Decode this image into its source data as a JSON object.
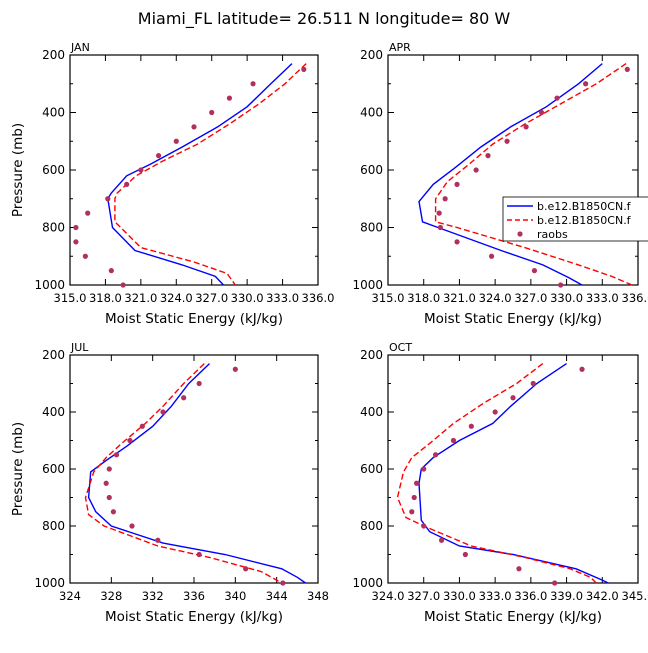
{
  "title": "Miami_FL  latitude= 26.511 N longitude= 80 W",
  "colors": {
    "model1": "#0000ff",
    "model2": "#ff0000",
    "obs": "#b03060",
    "axis": "#000000"
  },
  "legend": {
    "entries": [
      {
        "label": "b.e12.B1850CN.f",
        "style": "solid",
        "color": "#0000ff"
      },
      {
        "label": "b.e12.B1850CN.f",
        "style": "dashed",
        "color": "#ff0000"
      },
      {
        "label": "raobs",
        "style": "dots",
        "color": "#b03060"
      }
    ]
  },
  "chart_data": [
    {
      "type": "line",
      "panel": "JAN",
      "xlabel": "Moist Static Energy (kJ/kg)",
      "ylabel": "Pressure (mb)",
      "xlim": [
        315.0,
        336.0
      ],
      "ylim": [
        1000,
        200
      ],
      "xticks": [
        315.0,
        318.0,
        321.0,
        324.0,
        327.0,
        330.0,
        333.0,
        336.0
      ],
      "xtick_labels": [
        "315.0",
        "318.0",
        "321.0",
        "324.0",
        "327.0",
        "330.0",
        "333.0",
        "336.0"
      ],
      "yticks": [
        200,
        400,
        600,
        800,
        1000
      ],
      "series": [
        {
          "style": "solid",
          "color": "#0000ff",
          "points": [
            [
              333.8,
              230
            ],
            [
              332.0,
              300
            ],
            [
              330.0,
              380
            ],
            [
              327.5,
              450
            ],
            [
              324.5,
              520
            ],
            [
              321.8,
              580
            ],
            [
              319.8,
              620
            ],
            [
              318.5,
              680
            ],
            [
              318.2,
              700
            ],
            [
              318.6,
              800
            ],
            [
              320.5,
              880
            ],
            [
              324.5,
              930
            ],
            [
              327.3,
              970
            ],
            [
              328.0,
              1000
            ]
          ]
        },
        {
          "style": "dashed",
          "color": "#ff0000",
          "points": [
            [
              335.0,
              230
            ],
            [
              333.2,
              300
            ],
            [
              331.0,
              370
            ],
            [
              328.5,
              440
            ],
            [
              325.8,
              510
            ],
            [
              322.8,
              570
            ],
            [
              320.6,
              620
            ],
            [
              319.0,
              680
            ],
            [
              318.8,
              700
            ],
            [
              318.8,
              780
            ],
            [
              321.0,
              870
            ],
            [
              325.5,
              920
            ],
            [
              328.3,
              960
            ],
            [
              329.0,
              1000
            ]
          ]
        },
        {
          "style": "dots",
          "color": "#b03060",
          "points": [
            [
              334.8,
              250
            ],
            [
              330.5,
              300
            ],
            [
              328.5,
              350
            ],
            [
              327.0,
              400
            ],
            [
              325.5,
              450
            ],
            [
              324.0,
              500
            ],
            [
              322.5,
              550
            ],
            [
              321.0,
              600
            ],
            [
              319.8,
              650
            ],
            [
              318.2,
              700
            ],
            [
              316.5,
              750
            ],
            [
              315.5,
              800
            ],
            [
              315.5,
              850
            ],
            [
              316.3,
              900
            ],
            [
              318.5,
              950
            ],
            [
              319.5,
              1000
            ]
          ]
        }
      ]
    },
    {
      "type": "line",
      "panel": "APR",
      "xlabel": "Moist Static Energy (kJ/kg)",
      "ylabel": "",
      "xlim": [
        315.0,
        336.0
      ],
      "ylim": [
        1000,
        200
      ],
      "xticks": [
        315.0,
        318.0,
        321.0,
        324.0,
        327.0,
        330.0,
        333.0,
        336.0
      ],
      "xtick_labels": [
        "315.0",
        "318.0",
        "321.0",
        "324.0",
        "327.0",
        "330.0",
        "333.0",
        "336.0"
      ],
      "yticks": [
        200,
        400,
        600,
        800,
        1000
      ],
      "series": [
        {
          "style": "solid",
          "color": "#0000ff",
          "points": [
            [
              333.0,
              230
            ],
            [
              331.0,
              300
            ],
            [
              328.3,
              380
            ],
            [
              325.3,
              450
            ],
            [
              322.8,
              520
            ],
            [
              320.7,
              590
            ],
            [
              318.8,
              650
            ],
            [
              317.6,
              710
            ],
            [
              317.9,
              780
            ],
            [
              319.2,
              800
            ],
            [
              324.5,
              880
            ],
            [
              328.0,
              930
            ],
            [
              330.2,
              975
            ],
            [
              331.3,
              1000
            ]
          ]
        },
        {
          "style": "dashed",
          "color": "#ff0000",
          "points": [
            [
              335.0,
              230
            ],
            [
              332.5,
              300
            ],
            [
              329.5,
              370
            ],
            [
              326.5,
              440
            ],
            [
              323.8,
              510
            ],
            [
              321.8,
              580
            ],
            [
              320.0,
              640
            ],
            [
              319.0,
              700
            ],
            [
              319.0,
              780
            ],
            [
              320.8,
              800
            ],
            [
              326.5,
              870
            ],
            [
              331.0,
              930
            ],
            [
              333.8,
              970
            ],
            [
              335.5,
              1000
            ]
          ]
        },
        {
          "style": "dots",
          "color": "#b03060",
          "points": [
            [
              335.1,
              250
            ],
            [
              331.6,
              300
            ],
            [
              329.2,
              350
            ],
            [
              327.9,
              400
            ],
            [
              326.6,
              450
            ],
            [
              325.0,
              500
            ],
            [
              323.4,
              550
            ],
            [
              322.4,
              600
            ],
            [
              320.8,
              650
            ],
            [
              319.8,
              700
            ],
            [
              319.3,
              750
            ],
            [
              319.4,
              800
            ],
            [
              320.8,
              850
            ],
            [
              323.7,
              900
            ],
            [
              327.3,
              950
            ],
            [
              329.5,
              1000
            ]
          ]
        }
      ]
    },
    {
      "type": "line",
      "panel": "JUL",
      "xlabel": "Moist Static Energy (kJ/kg)",
      "ylabel": "Pressure (mb)",
      "xlim": [
        324,
        348
      ],
      "ylim": [
        1000,
        200
      ],
      "xticks": [
        324,
        328,
        332,
        336,
        340,
        344,
        348
      ],
      "xtick_labels": [
        "324",
        "328",
        "332",
        "336",
        "340",
        "344",
        "348"
      ],
      "yticks": [
        200,
        400,
        600,
        800,
        1000
      ],
      "series": [
        {
          "style": "solid",
          "color": "#0000ff",
          "points": [
            [
              337.5,
              230
            ],
            [
              335.5,
              300
            ],
            [
              333.8,
              380
            ],
            [
              332.0,
              450
            ],
            [
              329.5,
              520
            ],
            [
              327.5,
              570
            ],
            [
              326.0,
              610
            ],
            [
              325.8,
              700
            ],
            [
              326.5,
              750
            ],
            [
              328.0,
              800
            ],
            [
              333.0,
              860
            ],
            [
              339.0,
              900
            ],
            [
              344.5,
              950
            ],
            [
              346.0,
              980
            ],
            [
              346.8,
              1000
            ]
          ]
        },
        {
          "style": "dashed",
          "color": "#ff0000",
          "points": [
            [
              337.0,
              230
            ],
            [
              335.0,
              300
            ],
            [
              333.0,
              380
            ],
            [
              331.3,
              440
            ],
            [
              329.0,
              510
            ],
            [
              327.5,
              560
            ],
            [
              326.3,
              610
            ],
            [
              325.5,
              700
            ],
            [
              325.8,
              760
            ],
            [
              327.3,
              800
            ],
            [
              332.5,
              870
            ],
            [
              337.5,
              910
            ],
            [
              342.5,
              960
            ],
            [
              344.5,
              1000
            ]
          ]
        },
        {
          "style": "dots",
          "color": "#b03060",
          "points": [
            [
              340.0,
              250
            ],
            [
              336.5,
              300
            ],
            [
              335.0,
              350
            ],
            [
              333.0,
              400
            ],
            [
              331.0,
              450
            ],
            [
              329.8,
              500
            ],
            [
              328.5,
              550
            ],
            [
              327.8,
              600
            ],
            [
              327.5,
              650
            ],
            [
              327.8,
              700
            ],
            [
              328.2,
              750
            ],
            [
              330.0,
              800
            ],
            [
              332.5,
              850
            ],
            [
              336.5,
              900
            ],
            [
              341.0,
              950
            ],
            [
              344.6,
              1000
            ]
          ]
        }
      ]
    },
    {
      "type": "line",
      "panel": "OCT",
      "xlabel": "Moist Static Energy (kJ/kg)",
      "ylabel": "",
      "xlim": [
        324.0,
        345.0
      ],
      "ylim": [
        1000,
        200
      ],
      "xticks": [
        324.0,
        327.0,
        330.0,
        333.0,
        336.0,
        339.0,
        342.0,
        345.0
      ],
      "xtick_labels": [
        "324.0",
        "327.0",
        "330.0",
        "333.0",
        "336.0",
        "339.0",
        "342.0",
        "345.0"
      ],
      "yticks": [
        200,
        400,
        600,
        800,
        1000
      ],
      "series": [
        {
          "style": "solid",
          "color": "#0000ff",
          "points": [
            [
              339.0,
              230
            ],
            [
              336.5,
              300
            ],
            [
              334.3,
              380
            ],
            [
              332.8,
              440
            ],
            [
              330.0,
              500
            ],
            [
              327.8,
              560
            ],
            [
              326.8,
              600
            ],
            [
              326.6,
              650
            ],
            [
              326.8,
              780
            ],
            [
              327.5,
              820
            ],
            [
              330.0,
              870
            ],
            [
              334.5,
              900
            ],
            [
              339.8,
              950
            ],
            [
              342.0,
              990
            ],
            [
              342.5,
              1000
            ]
          ]
        },
        {
          "style": "dashed",
          "color": "#ff0000",
          "points": [
            [
              337.0,
              230
            ],
            [
              334.8,
              300
            ],
            [
              332.0,
              370
            ],
            [
              329.5,
              440
            ],
            [
              327.5,
              510
            ],
            [
              326.0,
              560
            ],
            [
              325.3,
              610
            ],
            [
              324.8,
              700
            ],
            [
              325.5,
              770
            ],
            [
              327.0,
              800
            ],
            [
              331.0,
              870
            ],
            [
              335.5,
              910
            ],
            [
              339.3,
              950
            ],
            [
              341.0,
              980
            ],
            [
              341.5,
              1000
            ]
          ]
        },
        {
          "style": "dots",
          "color": "#b03060",
          "points": [
            [
              340.3,
              250
            ],
            [
              336.2,
              300
            ],
            [
              334.5,
              350
            ],
            [
              333.0,
              400
            ],
            [
              331.0,
              450
            ],
            [
              329.5,
              500
            ],
            [
              328.0,
              550
            ],
            [
              327.0,
              600
            ],
            [
              326.4,
              650
            ],
            [
              326.2,
              700
            ],
            [
              326.0,
              750
            ],
            [
              327.0,
              800
            ],
            [
              328.5,
              850
            ],
            [
              330.5,
              900
            ],
            [
              335.0,
              950
            ],
            [
              338.0,
              1000
            ]
          ]
        }
      ]
    }
  ]
}
